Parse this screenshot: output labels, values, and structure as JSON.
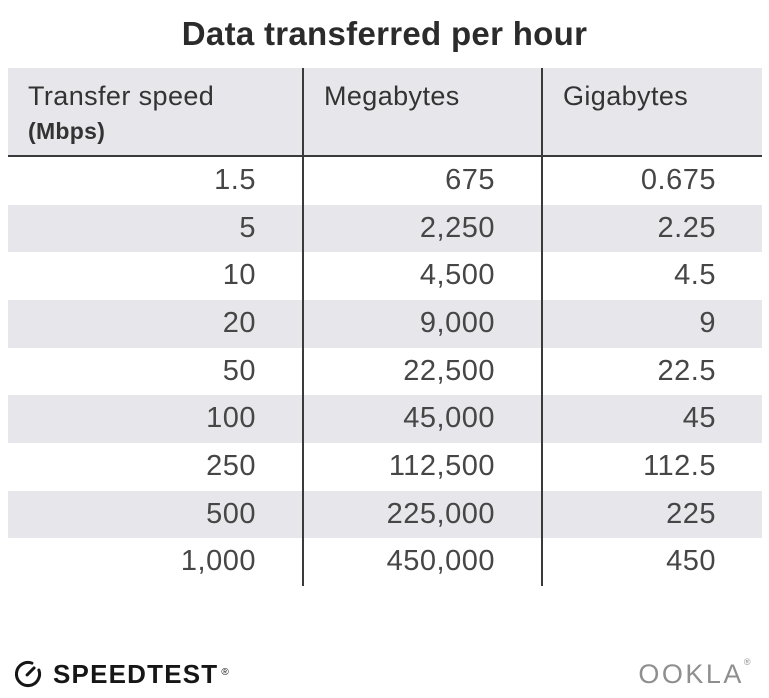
{
  "title": "Data transferred per hour",
  "table": {
    "columns": [
      {
        "label": "Transfer speed",
        "sublabel": "(Mbps)"
      },
      {
        "label": "Megabytes",
        "sublabel": ""
      },
      {
        "label": "Gigabytes",
        "sublabel": ""
      }
    ],
    "rows": [
      [
        "1.5",
        "675",
        "0.675"
      ],
      [
        "5",
        "2,250",
        "2.25"
      ],
      [
        "10",
        "4,500",
        "4.5"
      ],
      [
        "20",
        "9,000",
        "9"
      ],
      [
        "50",
        "22,500",
        "22.5"
      ],
      [
        "100",
        "45,000",
        "45"
      ],
      [
        "250",
        "112,500",
        "112.5"
      ],
      [
        "500",
        "225,000",
        "225"
      ],
      [
        "1,000",
        "450,000",
        "450"
      ]
    ]
  },
  "chart_data": {
    "type": "table",
    "title": "Data transferred per hour",
    "columns": [
      "Transfer speed (Mbps)",
      "Megabytes",
      "Gigabytes"
    ],
    "rows": [
      [
        1.5,
        675,
        0.675
      ],
      [
        5,
        2250,
        2.25
      ],
      [
        10,
        4500,
        4.5
      ],
      [
        20,
        9000,
        9
      ],
      [
        50,
        22500,
        22.5
      ],
      [
        100,
        45000,
        45
      ],
      [
        250,
        112500,
        112.5
      ],
      [
        500,
        225000,
        225
      ],
      [
        1000,
        450000,
        450
      ]
    ]
  },
  "footer": {
    "speedtest_label": "SPEEDTEST",
    "speedtest_registered": "®",
    "ookla_label": "OOKLA",
    "ookla_registered": "®"
  },
  "colors": {
    "stripe": "#e7e6ea",
    "line": "#3a3a3a",
    "title_text": "#2b2b2b",
    "number_text": "#464646",
    "ookla_gray": "#8f8f8f"
  }
}
